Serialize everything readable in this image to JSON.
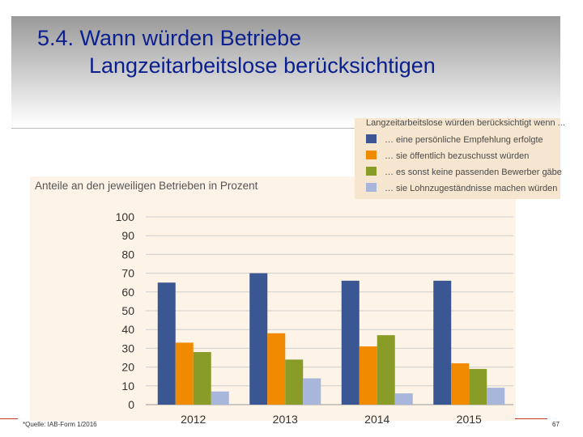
{
  "slide": {
    "title_line1": "5.4. Wann würden Betriebe",
    "title_line2": "Langzeitarbeitslose berücksichtigen",
    "source": "*Quelle: IAB-Form 1/2016",
    "page_number": "67"
  },
  "legend": {
    "title": "Langzeitarbeitslose würden berücksichtigt wenn ...",
    "items": [
      {
        "label": "… eine persönliche Empfehlung erfolgte",
        "color": "#3a5693"
      },
      {
        "label": "… sie öffentlich bezuschusst würden",
        "color": "#f28a00"
      },
      {
        "label": "… es sonst keine passenden Bewerber gäbe",
        "color": "#8a9c28"
      },
      {
        "label": "… sie Lohnzugeständnisse machen würden",
        "color": "#a9b6dc"
      }
    ]
  },
  "chart_data": {
    "type": "bar",
    "title": "Anteile an den jeweiligen Betrieben in Prozent",
    "categories": [
      "2012",
      "2013",
      "2014",
      "2015"
    ],
    "series": [
      {
        "name": "… eine persönliche Empfehlung erfolgte",
        "values": [
          65,
          70,
          66,
          66
        ]
      },
      {
        "name": "… sie öffentlich bezuschusst würden",
        "values": [
          33,
          38,
          31,
          22
        ]
      },
      {
        "name": "… es sonst keine passenden Bewerber gäbe",
        "values": [
          28,
          24,
          37,
          19
        ]
      },
      {
        "name": "… sie Lohnzugeständnisse machen würden",
        "values": [
          7,
          14,
          6,
          9
        ]
      }
    ],
    "ylim": [
      0,
      100
    ],
    "yticks": [
      0,
      10,
      20,
      30,
      40,
      50,
      60,
      70,
      80,
      90,
      100
    ],
    "xlabel": "",
    "ylabel": "",
    "grid": true,
    "legend_position": "top-right"
  }
}
